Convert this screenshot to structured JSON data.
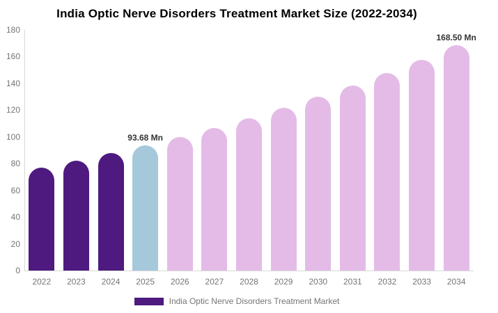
{
  "chart_data": {
    "type": "bar",
    "title": "India Optic Nerve Disorders Treatment Market Size (2022-2034)",
    "categories": [
      "2022",
      "2023",
      "2024",
      "2025",
      "2026",
      "2027",
      "2028",
      "2029",
      "2030",
      "2031",
      "2032",
      "2033",
      "2034"
    ],
    "series": [
      {
        "name": "India Optic Nerve Disorders Treatment Market",
        "values": [
          77,
          82,
          87.7,
          93.68,
          100,
          106.7,
          113.9,
          121.6,
          129.8,
          138.5,
          147.9,
          157.8,
          168.5
        ]
      }
    ],
    "unit": "Mn",
    "xlabel": "",
    "ylabel": "",
    "ylim": [
      0,
      180
    ],
    "yticks": [
      0,
      20,
      40,
      60,
      80,
      100,
      120,
      140,
      160,
      180
    ],
    "grid": false,
    "legend_position": "bottom",
    "bar_colors": [
      "#4E1A7F",
      "#4E1A7F",
      "#4E1A7F",
      "#A5C9DB",
      "#E4BBE7",
      "#E4BBE7",
      "#E4BBE7",
      "#E4BBE7",
      "#E4BBE7",
      "#E4BBE7",
      "#E4BBE7",
      "#E4BBE7",
      "#E4BBE7"
    ],
    "annotations": [
      {
        "category": "2025",
        "text": "93.68 Mn"
      },
      {
        "category": "2034",
        "text": "168.50 Mn"
      }
    ]
  },
  "legend": {
    "label": "India Optic Nerve Disorders Treatment Market",
    "swatch_color": "#4E1A7F"
  },
  "colors": {
    "axis_line": "#d9d9d9",
    "tick_text": "#757575",
    "annotation_text": "#333333",
    "title_text": "#000000",
    "historical_bar": "#4E1A7F",
    "base_year_bar": "#A5C9DB",
    "forecast_bar": "#E4BBE7"
  }
}
